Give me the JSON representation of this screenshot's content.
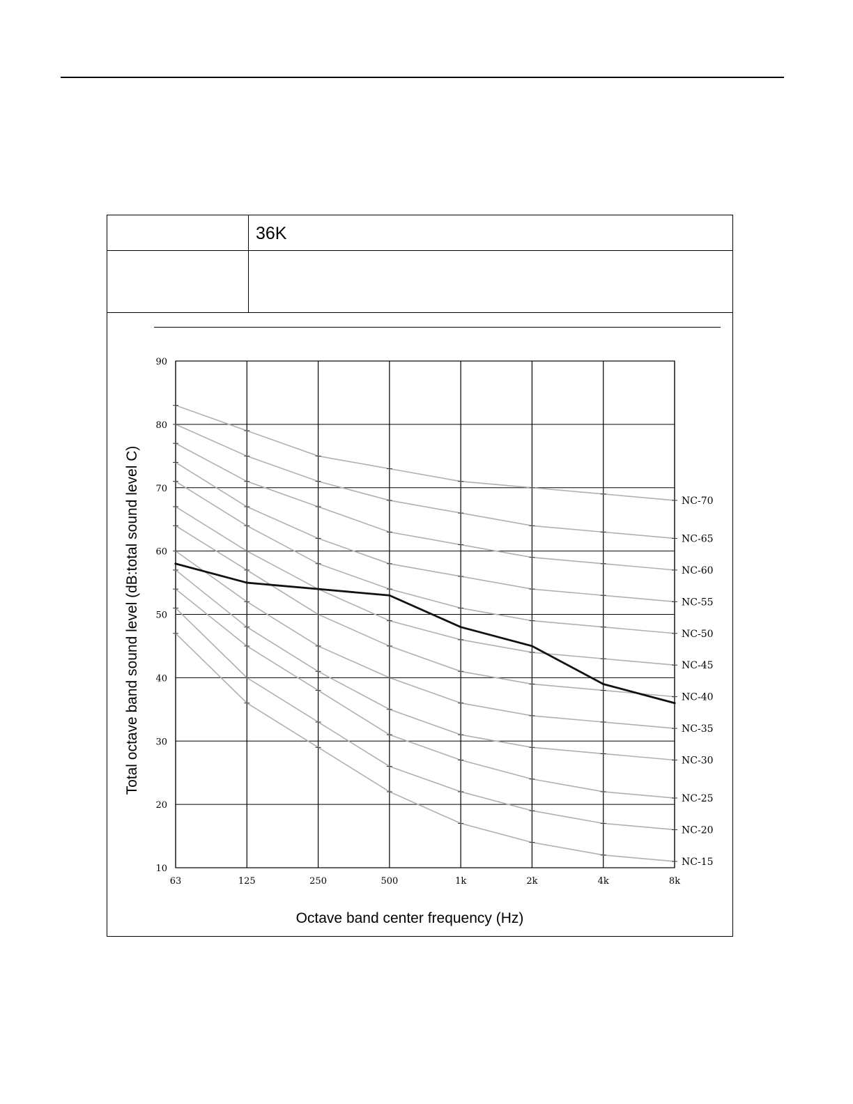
{
  "header": {
    "model_label": "",
    "model_value": "36K",
    "description_label": "",
    "description_value": ""
  },
  "chart_data": {
    "type": "line",
    "title": "",
    "xlabel": "Octave band center frequency (Hz)",
    "ylabel": "Total octave band sound level (dB:total sound level C)",
    "x_tick_labels": [
      "63",
      "125",
      "250",
      "500",
      "1k",
      "2k",
      "4k",
      "8k"
    ],
    "y_ticks": [
      90,
      80,
      70,
      60,
      50,
      40,
      30,
      20,
      10
    ],
    "ylim": [
      10,
      90
    ],
    "x_scale": "log2",
    "grid": true,
    "measured": {
      "values": [
        58,
        55,
        54,
        53,
        48,
        45,
        39,
        36
      ],
      "color": "#111111"
    },
    "nc_curves": [
      {
        "name": "NC-70",
        "values": [
          83,
          79,
          75,
          73,
          71,
          70,
          69,
          68
        ]
      },
      {
        "name": "NC-65",
        "values": [
          80,
          75,
          71,
          68,
          66,
          64,
          63,
          62
        ]
      },
      {
        "name": "NC-60",
        "values": [
          77,
          71,
          67,
          63,
          61,
          59,
          58,
          57
        ]
      },
      {
        "name": "NC-55",
        "values": [
          74,
          67,
          62,
          58,
          56,
          54,
          53,
          52
        ]
      },
      {
        "name": "NC-50",
        "values": [
          71,
          64,
          58,
          54,
          51,
          49,
          48,
          47
        ]
      },
      {
        "name": "NC-45",
        "values": [
          67,
          60,
          54,
          49,
          46,
          44,
          43,
          42
        ]
      },
      {
        "name": "NC-40",
        "values": [
          64,
          57,
          50,
          45,
          41,
          39,
          38,
          37
        ]
      },
      {
        "name": "NC-35",
        "values": [
          60,
          52,
          45,
          40,
          36,
          34,
          33,
          32
        ]
      },
      {
        "name": "NC-30",
        "values": [
          57,
          48,
          41,
          35,
          31,
          29,
          28,
          27
        ]
      },
      {
        "name": "NC-25",
        "values": [
          54,
          45,
          38,
          31,
          27,
          24,
          22,
          21
        ]
      },
      {
        "name": "NC-20",
        "values": [
          51,
          40,
          33,
          26,
          22,
          19,
          17,
          16
        ]
      },
      {
        "name": "NC-15",
        "values": [
          47,
          36,
          29,
          22,
          17,
          14,
          12,
          11
        ]
      }
    ],
    "colors": {
      "nc_curve": "#b0b0b0",
      "grid": "#000000",
      "measured": "#111111"
    }
  }
}
